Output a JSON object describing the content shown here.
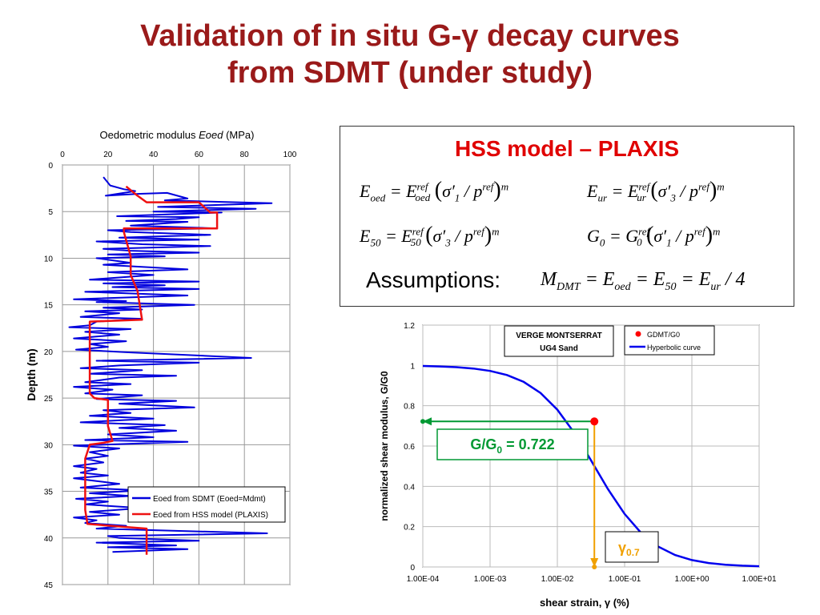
{
  "slide": {
    "title_line1": "Validation of in situ G-γ decay curves",
    "title_line2": "from SDMT (under study)"
  },
  "hss": {
    "title": "HSS model – PLAXIS",
    "assumptions_label": "Assumptions:"
  },
  "chart_data": [
    {
      "type": "line",
      "title": "Oedometric modulus Eoed (MPa)",
      "title_prefix": "Oedometric modulus ",
      "title_italic": "Eoed",
      "title_suffix": " (MPa)",
      "xlabel": "",
      "ylabel": "Depth (m)",
      "xlim": [
        0,
        100
      ],
      "ylim": [
        0,
        45
      ],
      "xticks": [
        0,
        20,
        40,
        60,
        80,
        100
      ],
      "yticks": [
        0,
        5,
        10,
        15,
        20,
        25,
        30,
        35,
        40,
        45
      ],
      "y_inverted": true,
      "grid": true,
      "legend_position": "bottom-right",
      "series": [
        {
          "name": "Eoed from SDMT (Eoed=Mdmt)",
          "color": "#0000dd",
          "points": [
            [
              18,
              1.3
            ],
            [
              21,
              2.2
            ],
            [
              27,
              2.6
            ],
            [
              32,
              2.8
            ],
            [
              19,
              3.3
            ],
            [
              33,
              3.1
            ],
            [
              46,
              3.0
            ],
            [
              55,
              3.6
            ],
            [
              45,
              3.8
            ],
            [
              92,
              4.1
            ],
            [
              42,
              4.5
            ],
            [
              85,
              4.7
            ],
            [
              40,
              5.0
            ],
            [
              70,
              5.1
            ],
            [
              24,
              5.5
            ],
            [
              60,
              5.6
            ],
            [
              50,
              5.8
            ],
            [
              28,
              6.0
            ],
            [
              55,
              6.1
            ],
            [
              30,
              6.5
            ],
            [
              68,
              6.8
            ],
            [
              20,
              7.0
            ],
            [
              30,
              7.2
            ],
            [
              65,
              7.5
            ],
            [
              25,
              7.8
            ],
            [
              60,
              8.0
            ],
            [
              15,
              8.2
            ],
            [
              35,
              8.5
            ],
            [
              65,
              8.7
            ],
            [
              18,
              9.0
            ],
            [
              30,
              9.2
            ],
            [
              60,
              9.4
            ],
            [
              20,
              9.6
            ],
            [
              45,
              9.8
            ],
            [
              15,
              10.0
            ],
            [
              30,
              10.5
            ],
            [
              18,
              10.7
            ],
            [
              55,
              11.2
            ],
            [
              20,
              11.5
            ],
            [
              40,
              11.8
            ],
            [
              12,
              12.3
            ],
            [
              60,
              12.5
            ],
            [
              18,
              12.7
            ],
            [
              45,
              12.9
            ],
            [
              22,
              13.1
            ],
            [
              60,
              13.3
            ],
            [
              10,
              13.6
            ],
            [
              55,
              14.0
            ],
            [
              5,
              14.4
            ],
            [
              28,
              14.6
            ],
            [
              15,
              14.7
            ],
            [
              58,
              15.0
            ],
            [
              18,
              15.3
            ],
            [
              35,
              15.5
            ],
            [
              10,
              15.7
            ],
            [
              25,
              15.9
            ],
            [
              8,
              16.3
            ],
            [
              35,
              16.5
            ],
            [
              15,
              16.8
            ],
            [
              12,
              17.2
            ],
            [
              3,
              17.4
            ],
            [
              30,
              17.6
            ],
            [
              10,
              17.9
            ],
            [
              25,
              18.2
            ],
            [
              5,
              18.6
            ],
            [
              28,
              18.9
            ],
            [
              12,
              19.2
            ],
            [
              20,
              19.5
            ],
            [
              6,
              19.8
            ],
            [
              30,
              20.1
            ],
            [
              83,
              20.7
            ],
            [
              15,
              21.0
            ],
            [
              60,
              21.2
            ],
            [
              25,
              21.5
            ],
            [
              8,
              21.8
            ],
            [
              35,
              22.0
            ],
            [
              12,
              22.4
            ],
            [
              50,
              22.6
            ],
            [
              25,
              22.8
            ],
            [
              10,
              23.3
            ],
            [
              30,
              23.5
            ],
            [
              5,
              23.8
            ],
            [
              22,
              24.1
            ],
            [
              10,
              24.5
            ],
            [
              35,
              24.7
            ],
            [
              15,
              25.1
            ],
            [
              50,
              25.3
            ],
            [
              25,
              25.6
            ],
            [
              58,
              26.0
            ],
            [
              18,
              26.3
            ],
            [
              30,
              26.6
            ],
            [
              12,
              26.9
            ],
            [
              40,
              27.2
            ],
            [
              8,
              27.6
            ],
            [
              45,
              27.9
            ],
            [
              25,
              28.2
            ],
            [
              50,
              28.5
            ],
            [
              20,
              28.9
            ],
            [
              40,
              29.2
            ],
            [
              10,
              29.5
            ],
            [
              55,
              29.7
            ],
            [
              5,
              30.1
            ],
            [
              25,
              30.4
            ],
            [
              12,
              30.8
            ],
            [
              20,
              31.2
            ],
            [
              10,
              31.5
            ],
            [
              18,
              31.9
            ],
            [
              5,
              32.3
            ],
            [
              15,
              32.6
            ],
            [
              8,
              33.0
            ],
            [
              20,
              33.3
            ],
            [
              5,
              33.6
            ],
            [
              15,
              33.9
            ],
            [
              25,
              34.2
            ],
            [
              8,
              34.6
            ],
            [
              35,
              34.9
            ],
            [
              12,
              35.2
            ],
            [
              30,
              35.5
            ],
            [
              6,
              35.8
            ],
            [
              20,
              36.1
            ],
            [
              10,
              36.4
            ],
            [
              35,
              36.8
            ],
            [
              12,
              37.2
            ],
            [
              25,
              37.5
            ],
            [
              5,
              37.8
            ],
            [
              15,
              38.1
            ],
            [
              10,
              38.4
            ],
            [
              28,
              38.7
            ],
            [
              15,
              39.0
            ],
            [
              90,
              39.5
            ],
            [
              20,
              39.8
            ],
            [
              25,
              40.0
            ],
            [
              60,
              40.3
            ],
            [
              15,
              40.5
            ],
            [
              50,
              40.8
            ],
            [
              20,
              41.0
            ],
            [
              55,
              41.2
            ],
            [
              22,
              41.5
            ]
          ]
        },
        {
          "name": "Eoed from HSS model (PLAXIS)",
          "color": "#ee1111",
          "points": [
            [
              28,
              2.3
            ],
            [
              33,
              3.3
            ],
            [
              37,
              4.0
            ],
            [
              60,
              4.0
            ],
            [
              65,
              5.1
            ],
            [
              68,
              5.1
            ],
            [
              68,
              6.8
            ],
            [
              27,
              6.8
            ],
            [
              27,
              7.2
            ],
            [
              30,
              9.8
            ],
            [
              30,
              11.8
            ],
            [
              33,
              13.5
            ],
            [
              35,
              16.6
            ],
            [
              12,
              16.8
            ],
            [
              12,
              24.5
            ],
            [
              14,
              25.0
            ],
            [
              20,
              25.2
            ],
            [
              20,
              26.5
            ],
            [
              20,
              28.0
            ],
            [
              22,
              29.6
            ],
            [
              18,
              29.8
            ],
            [
              12,
              30.0
            ],
            [
              10,
              31.5
            ],
            [
              10,
              37.0
            ],
            [
              11,
              38.5
            ],
            [
              37,
              39.0
            ],
            [
              37,
              41.8
            ]
          ]
        }
      ]
    },
    {
      "type": "line",
      "title": "",
      "xlabel": "shear strain, γ  (%)",
      "ylabel": "normalized shear modulus, G/G0",
      "x_scale": "log",
      "xlim": [
        0.0001,
        10
      ],
      "ylim": [
        0,
        1.2
      ],
      "xticks": [
        "1.00E-04",
        "1.00E-03",
        "1.00E-02",
        "1.00E-01",
        "1.00E+00",
        "1.00E+01"
      ],
      "yticks": [
        "0",
        "0.2",
        "0.4",
        "0.6",
        "0.8",
        "1",
        "1.2"
      ],
      "grid": true,
      "legend_position": "top-right",
      "site_label_line1": "VERGE MONTSERRAT",
      "site_label_line2": "UG4 Sand",
      "series": [
        {
          "name": "GDMT/G0",
          "color": "#ff0000",
          "points": [
            [
              0.0355,
              0.722
            ]
          ]
        },
        {
          "name": "Hyperbolic curve",
          "color": "#0000ee",
          "points": [
            [
              0.0001,
              0.9972
            ],
            [
              0.000178,
              0.995
            ],
            [
              0.000316,
              0.9912
            ],
            [
              0.000562,
              0.9845
            ],
            [
              0.001,
              0.9726
            ],
            [
              0.00178,
              0.9523
            ],
            [
              0.00316,
              0.9182
            ],
            [
              0.00562,
              0.8635
            ],
            [
              0.01,
              0.7802
            ],
            [
              0.0178,
              0.6662
            ],
            [
              0.0316,
              0.5293
            ],
            [
              0.0562,
              0.3875
            ],
            [
              0.1,
              0.2629
            ],
            [
              0.178,
              0.1667
            ],
            [
              0.316,
              0.101
            ],
            [
              0.562,
              0.0594
            ],
            [
              1,
              0.0343
            ],
            [
              1.78,
              0.0196
            ],
            [
              3.16,
              0.0111
            ],
            [
              5.62,
              0.0063
            ],
            [
              10,
              0.0035
            ]
          ]
        }
      ],
      "annotations": {
        "ratio_label": "G/G",
        "ratio_sub": "0",
        "ratio_value": " = 0.722",
        "gamma_label": "γ",
        "gamma_sub": "0.7",
        "ratio_color": "#009933",
        "gamma_color": "#f0a000"
      }
    }
  ]
}
